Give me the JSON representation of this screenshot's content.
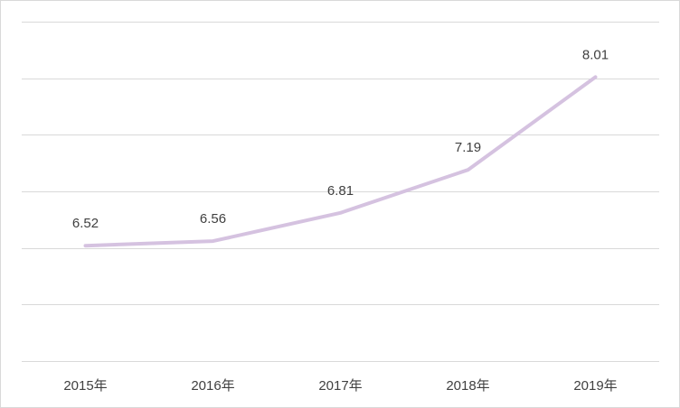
{
  "chart_data": {
    "type": "line",
    "title": "",
    "xlabel": "",
    "ylabel": "",
    "categories": [
      "2015年",
      "2016年",
      "2017年",
      "2018年",
      "2019年"
    ],
    "series": [
      {
        "name": "",
        "values": [
          6.52,
          6.56,
          6.81,
          7.19,
          8.01
        ]
      }
    ],
    "data_labels": [
      "6.52",
      "6.56",
      "6.81",
      "7.19",
      "8.01"
    ],
    "ylim": [
      5.5,
      8.5
    ],
    "y_grid_step": 0.5,
    "grid": true,
    "legend": "none",
    "colors": {
      "line": "#d5c2e0",
      "grid": "#d9d9d9",
      "text": "#404040"
    }
  }
}
